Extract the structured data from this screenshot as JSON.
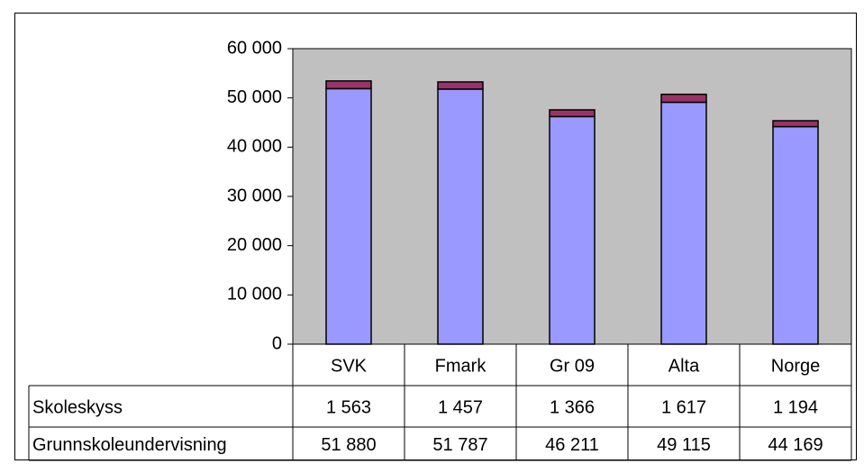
{
  "chart_data": {
    "type": "stacked_bar",
    "categories": [
      "SVK",
      "Fmark",
      "Gr 09",
      "Alta",
      "Norge"
    ],
    "series": [
      {
        "name": "Skoleskyss",
        "color": "#993366",
        "values": [
          1563,
          1457,
          1366,
          1617,
          1194
        ],
        "value_labels": [
          "1 563",
          "1 457",
          "1 366",
          "1 617",
          "1 194"
        ]
      },
      {
        "name": "Grunnskoleundervisning",
        "color": "#9999ff",
        "values": [
          51880,
          51787,
          46211,
          49115,
          44169
        ],
        "value_labels": [
          "51 880",
          "51 787",
          "46 211",
          "49 115",
          "44 169"
        ]
      }
    ],
    "ylim": [
      0,
      60000
    ],
    "yticks": [
      0,
      {
        "value": 10000,
        "label": "10 000"
      },
      {
        "value": 20000,
        "label": "20 000"
      },
      {
        "value": 30000,
        "label": "30 000"
      },
      {
        "value": 40000,
        "label": "40 000"
      },
      {
        "value": 50000,
        "label": "50 000"
      },
      {
        "value": 60000,
        "label": "60 000"
      }
    ],
    "grid": false,
    "plot_background": "#c0c0c0"
  }
}
